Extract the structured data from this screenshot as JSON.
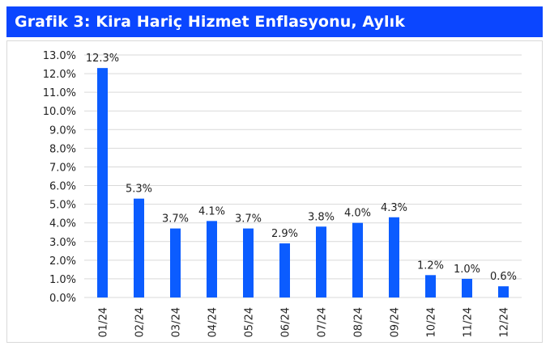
{
  "header": {
    "title": "Grafik 3: Kira Hariç Hizmet Enflasyonu, Aylık"
  },
  "colors": {
    "header_bg": "#0b46ff",
    "bar": "#0b5cff",
    "grid": "#d9d9d9"
  },
  "chart_data": {
    "type": "bar",
    "title": "Grafik 3: Kira Hariç Hizmet Enflasyonu, Aylık",
    "categories": [
      "01/24",
      "02/24",
      "03/24",
      "04/24",
      "05/24",
      "06/24",
      "07/24",
      "08/24",
      "09/24",
      "10/24",
      "11/24",
      "12/24"
    ],
    "values": [
      12.3,
      5.3,
      3.7,
      4.1,
      3.7,
      2.9,
      3.8,
      4.0,
      4.3,
      1.2,
      1.0,
      0.6
    ],
    "data_labels": [
      "12.3%",
      "5.3%",
      "3.7%",
      "4.1%",
      "3.7%",
      "2.9%",
      "3.8%",
      "4.0%",
      "4.3%",
      "1.2%",
      "1.0%",
      "0.6%"
    ],
    "ylim": [
      0,
      13
    ],
    "yticks": [
      "0.0%",
      "1.0%",
      "2.0%",
      "3.0%",
      "4.0%",
      "5.0%",
      "6.0%",
      "7.0%",
      "8.0%",
      "9.0%",
      "10.0%",
      "11.0%",
      "12.0%",
      "13.0%"
    ],
    "xlabel": "",
    "ylabel": "",
    "grid": true,
    "legend": "none"
  }
}
